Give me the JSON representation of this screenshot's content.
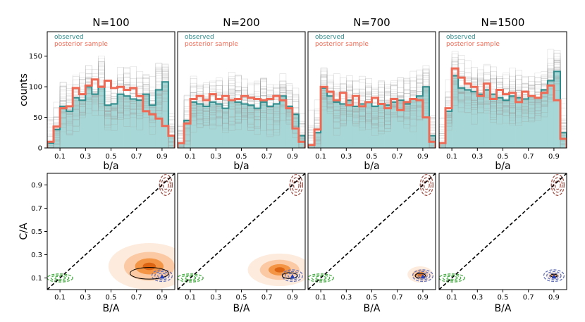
{
  "figure": {
    "top_row_ylabel": "counts",
    "bottom_row_ylabel": "C/A",
    "top_row_xlabel": "b/a",
    "bottom_row_xlabel": "B/A",
    "legend": {
      "observed": "observed",
      "posterior": "posterior sample"
    },
    "colors": {
      "observed_fill": "#a7d7d6",
      "observed_line": "#2e8b8b",
      "posterior_line": "#ef6a55",
      "sample_lines": "#9a9a9a",
      "density_light": "#fde9d9",
      "density_mid": "#fbc79f",
      "density_dark": "#f28f3b",
      "density_core": "#d95f0e",
      "contour_blue": "#6673b8",
      "contour_green": "#4daf4a",
      "contour_brown": "#a0544a",
      "diagonal": "#000000",
      "marker": "#1f3fbf"
    }
  },
  "chart_data": [
    {
      "type": "bar",
      "title": "N=100",
      "xlabel": "b/a",
      "ylabel": "counts",
      "xlim": [
        0,
        1
      ],
      "ylim": [
        0,
        190
      ],
      "xticks": [
        "0.1",
        "0.3",
        "0.5",
        "0.7",
        "0.9"
      ],
      "yticks": [
        "0",
        "50",
        "100",
        "150"
      ],
      "bin_edges": [
        0,
        0.05,
        0.1,
        0.15,
        0.2,
        0.25,
        0.3,
        0.35,
        0.4,
        0.45,
        0.5,
        0.55,
        0.6,
        0.65,
        0.7,
        0.75,
        0.8,
        0.85,
        0.9,
        0.95,
        1.0
      ],
      "series": [
        {
          "name": "observed",
          "values": [
            8,
            30,
            68,
            60,
            82,
            78,
            100,
            88,
            100,
            70,
            72,
            88,
            85,
            80,
            78,
            88,
            70,
            95,
            108,
            20
          ]
        },
        {
          "name": "posterior sample",
          "values": [
            10,
            35,
            65,
            68,
            98,
            88,
            102,
            112,
            100,
            110,
            98,
            100,
            95,
            98,
            85,
            60,
            55,
            48,
            36,
            20
          ]
        }
      ]
    },
    {
      "type": "bar",
      "title": "N=200",
      "xlabel": "b/a",
      "xlim": [
        0,
        1
      ],
      "ylim": [
        0,
        190
      ],
      "xticks": [
        "0.1",
        "0.3",
        "0.5",
        "0.7",
        "0.9"
      ],
      "bin_edges": [
        0,
        0.05,
        0.1,
        0.15,
        0.2,
        0.25,
        0.3,
        0.35,
        0.4,
        0.45,
        0.5,
        0.55,
        0.6,
        0.65,
        0.7,
        0.75,
        0.8,
        0.85,
        0.9,
        0.95,
        1.0
      ],
      "series": [
        {
          "name": "observed",
          "values": [
            8,
            45,
            75,
            72,
            68,
            75,
            72,
            65,
            78,
            75,
            72,
            70,
            65,
            75,
            68,
            72,
            85,
            68,
            55,
            20
          ]
        },
        {
          "name": "posterior sample",
          "values": [
            8,
            40,
            80,
            85,
            78,
            88,
            80,
            85,
            78,
            80,
            85,
            82,
            80,
            78,
            80,
            85,
            78,
            65,
            32,
            10
          ]
        }
      ]
    },
    {
      "type": "bar",
      "title": "N=700",
      "xlabel": "b/a",
      "xlim": [
        0,
        1
      ],
      "ylim": [
        0,
        190
      ],
      "xticks": [
        "0.1",
        "0.3",
        "0.5",
        "0.7",
        "0.9"
      ],
      "bin_edges": [
        0,
        0.05,
        0.1,
        0.15,
        0.2,
        0.25,
        0.3,
        0.35,
        0.4,
        0.45,
        0.5,
        0.55,
        0.6,
        0.65,
        0.7,
        0.75,
        0.8,
        0.85,
        0.9,
        0.95,
        1.0
      ],
      "series": [
        {
          "name": "observed",
          "values": [
            5,
            25,
            98,
            85,
            75,
            72,
            78,
            68,
            72,
            75,
            68,
            72,
            70,
            75,
            78,
            72,
            80,
            85,
            100,
            20
          ]
        },
        {
          "name": "posterior sample",
          "values": [
            5,
            30,
            100,
            92,
            78,
            90,
            70,
            85,
            68,
            75,
            82,
            72,
            65,
            80,
            62,
            75,
            80,
            78,
            50,
            10
          ]
        }
      ]
    },
    {
      "type": "bar",
      "title": "N=1500",
      "xlabel": "b/a",
      "xlim": [
        0,
        1
      ],
      "ylim": [
        0,
        190
      ],
      "xticks": [
        "0.1",
        "0.3",
        "0.5",
        "0.7",
        "0.9"
      ],
      "bin_edges": [
        0,
        0.05,
        0.1,
        0.15,
        0.2,
        0.25,
        0.3,
        0.35,
        0.4,
        0.45,
        0.5,
        0.55,
        0.6,
        0.65,
        0.7,
        0.75,
        0.8,
        0.85,
        0.9,
        0.95,
        1.0
      ],
      "series": [
        {
          "name": "observed",
          "values": [
            8,
            60,
            118,
            98,
            95,
            92,
            88,
            95,
            88,
            82,
            78,
            85,
            82,
            80,
            85,
            82,
            95,
            110,
            125,
            25
          ]
        },
        {
          "name": "posterior sample",
          "values": [
            8,
            65,
            130,
            115,
            105,
            100,
            85,
            105,
            80,
            95,
            88,
            90,
            75,
            92,
            85,
            82,
            90,
            102,
            78,
            15
          ]
        }
      ]
    },
    {
      "type": "heatmap",
      "panel": "N=100",
      "xlabel": "B/A",
      "ylabel": "C/A",
      "xlim": [
        0,
        1
      ],
      "ylim": [
        0,
        1
      ],
      "xticks": [
        "0.1",
        "0.3",
        "0.5",
        "0.7",
        "0.9"
      ],
      "yticks": [
        "0.1",
        "0.3",
        "0.5",
        "0.7",
        "0.9"
      ],
      "posterior_density": {
        "center": [
          0.8,
          0.2
        ],
        "spread_x": 0.32,
        "spread_y": 0.2,
        "levels": 4
      },
      "ellipse": {
        "center": [
          0.8,
          0.14
        ],
        "width": 0.3,
        "height": 0.1
      },
      "marker": [
        0.9,
        0.11
      ],
      "contours": [
        {
          "color": "blue",
          "center": [
            0.9,
            0.12
          ]
        },
        {
          "color": "green",
          "center": [
            0.1,
            0.1
          ]
        },
        {
          "color": "brown",
          "center": [
            0.93,
            0.9
          ]
        }
      ]
    },
    {
      "type": "heatmap",
      "panel": "N=200",
      "xlabel": "B/A",
      "xlim": [
        0,
        1
      ],
      "ylim": [
        0,
        1
      ],
      "xticks": [
        "0.1",
        "0.3",
        "0.5",
        "0.7",
        "0.9"
      ],
      "posterior_density": {
        "center": [
          0.8,
          0.17
        ],
        "spread_x": 0.25,
        "spread_y": 0.14,
        "levels": 4
      },
      "ellipse": {
        "center": [
          0.88,
          0.12
        ],
        "width": 0.12,
        "height": 0.05
      },
      "marker": [
        0.9,
        0.11
      ],
      "contours": [
        {
          "color": "blue",
          "center": [
            0.9,
            0.12
          ]
        },
        {
          "color": "green",
          "center": [
            0.1,
            0.1
          ]
        },
        {
          "color": "brown",
          "center": [
            0.93,
            0.9
          ]
        }
      ]
    },
    {
      "type": "heatmap",
      "panel": "N=700",
      "xlabel": "B/A",
      "xlim": [
        0,
        1
      ],
      "ylim": [
        0,
        1
      ],
      "xticks": [
        "0.1",
        "0.3",
        "0.5",
        "0.7",
        "0.9"
      ],
      "posterior_density": {
        "center": [
          0.88,
          0.13
        ],
        "spread_x": 0.1,
        "spread_y": 0.07,
        "levels": 4
      },
      "ellipse": {
        "center": [
          0.88,
          0.12
        ],
        "width": 0.08,
        "height": 0.04
      },
      "marker": [
        0.9,
        0.11
      ],
      "contours": [
        {
          "color": "blue",
          "center": [
            0.9,
            0.12
          ]
        },
        {
          "color": "green",
          "center": [
            0.1,
            0.1
          ]
        },
        {
          "color": "brown",
          "center": [
            0.93,
            0.9
          ]
        }
      ]
    },
    {
      "type": "heatmap",
      "panel": "N=1500",
      "xlabel": "B/A",
      "xlim": [
        0,
        1
      ],
      "ylim": [
        0,
        1
      ],
      "xticks": [
        "0.1",
        "0.3",
        "0.5",
        "0.7",
        "0.9"
      ],
      "posterior_density": {
        "center": [
          0.9,
          0.12
        ],
        "spread_x": 0.05,
        "spread_y": 0.03,
        "levels": 4
      },
      "ellipse": {
        "center": [
          0.9,
          0.12
        ],
        "width": 0.05,
        "height": 0.025
      },
      "marker": [
        0.9,
        0.11
      ],
      "contours": [
        {
          "color": "blue",
          "center": [
            0.9,
            0.12
          ]
        },
        {
          "color": "green",
          "center": [
            0.1,
            0.1
          ]
        },
        {
          "color": "brown",
          "center": [
            0.93,
            0.9
          ]
        }
      ]
    }
  ]
}
